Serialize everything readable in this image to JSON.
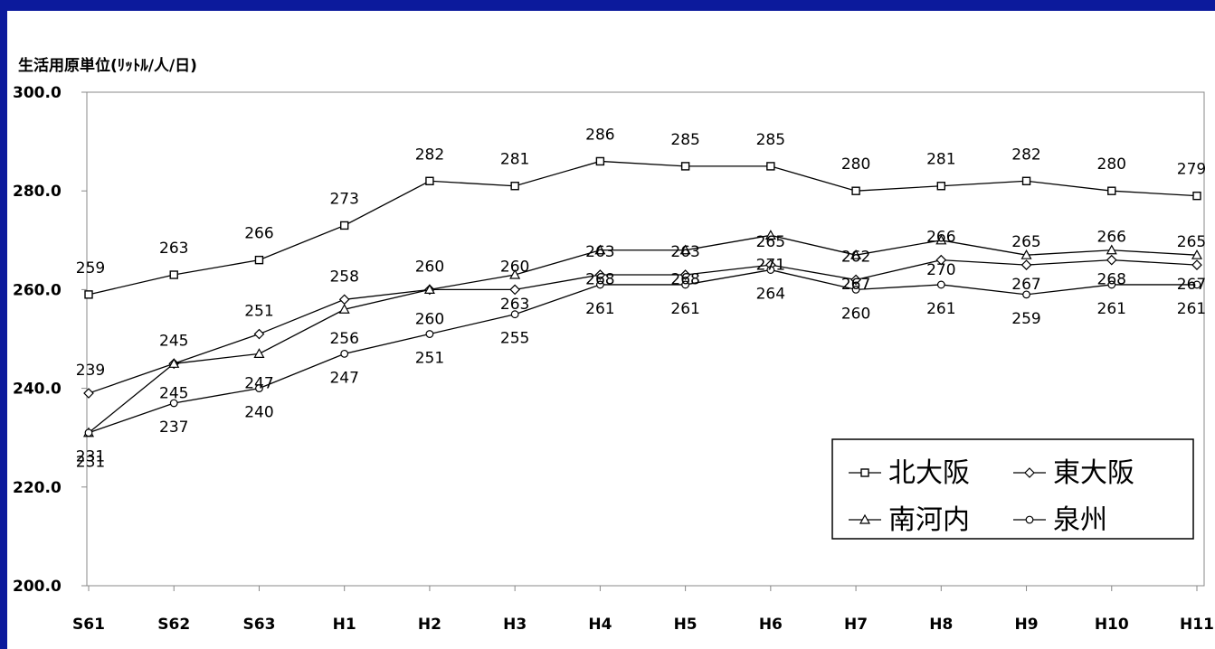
{
  "chart_data": {
    "type": "line",
    "ylabel": "生活用原単位(ﾘｯﾄﾙ/人/日)",
    "ylim": [
      200,
      300
    ],
    "yticks": [
      "200.0",
      "220.0",
      "240.0",
      "260.0",
      "280.0",
      "300.0"
    ],
    "grid": false,
    "legend_position": "bottom-right",
    "categories": [
      "S61",
      "S62",
      "S63",
      "H1",
      "H2",
      "H3",
      "H4",
      "H5",
      "H6",
      "H7",
      "H8",
      "H9",
      "H10",
      "H11"
    ],
    "series": [
      {
        "name": "北大阪",
        "marker": "square",
        "values": [
          259,
          263,
          266,
          273,
          282,
          281,
          286,
          285,
          285,
          280,
          281,
          282,
          280,
          279
        ]
      },
      {
        "name": "東大阪",
        "marker": "diamond",
        "values": [
          239,
          245,
          251,
          258,
          260,
          260,
          263,
          263,
          265,
          262,
          266,
          265,
          266,
          265
        ]
      },
      {
        "name": "南河内",
        "marker": "triangle",
        "values": [
          231,
          245,
          247,
          256,
          260,
          263,
          268,
          268,
          271,
          267,
          270,
          267,
          268,
          267
        ]
      },
      {
        "name": "泉州",
        "marker": "circle",
        "values": [
          231,
          237,
          240,
          247,
          251,
          255,
          261,
          261,
          264,
          260,
          261,
          259,
          261,
          261
        ]
      }
    ]
  }
}
